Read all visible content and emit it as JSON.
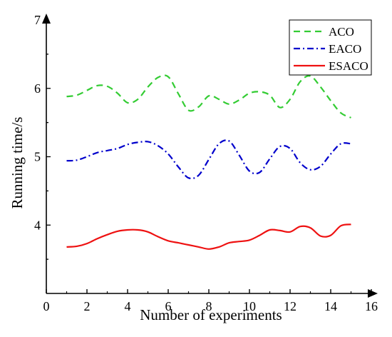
{
  "chart_data": {
    "type": "line",
    "title": "",
    "xlabel": "Number of experiments",
    "ylabel": "Running time/s",
    "xlim": [
      0,
      16
    ],
    "ylim": [
      3,
      7
    ],
    "xticks": [
      "0",
      "2",
      "4",
      "6",
      "8",
      "10",
      "12",
      "14",
      "16"
    ],
    "yticks": [
      "4",
      "5",
      "6",
      "7"
    ],
    "grid": false,
    "legend_position": "top-right",
    "x": [
      1,
      1.5,
      2,
      2.5,
      3,
      3.5,
      4,
      4.5,
      5,
      5.5,
      6,
      6.5,
      7,
      7.5,
      8,
      8.5,
      9,
      9.5,
      10,
      10.5,
      11,
      11.5,
      12,
      12.5,
      13,
      13.5,
      14,
      14.5,
      15
    ],
    "series": [
      {
        "name": "ACO",
        "color": "#33cc33",
        "dash": "dashed",
        "values": [
          5.88,
          5.9,
          5.97,
          6.04,
          6.03,
          5.93,
          5.79,
          5.84,
          6.02,
          6.16,
          6.17,
          5.92,
          5.68,
          5.73,
          5.89,
          5.84,
          5.77,
          5.83,
          5.93,
          5.95,
          5.9,
          5.72,
          5.84,
          6.1,
          6.18,
          6.02,
          5.82,
          5.64,
          5.57
        ]
      },
      {
        "name": "EACO",
        "color": "#0000cc",
        "dash": "dashdot",
        "values": [
          4.94,
          4.95,
          5.0,
          5.06,
          5.09,
          5.12,
          5.18,
          5.21,
          5.22,
          5.16,
          5.04,
          4.85,
          4.69,
          4.73,
          4.96,
          5.19,
          5.23,
          5.02,
          4.79,
          4.77,
          4.97,
          5.15,
          5.12,
          4.91,
          4.81,
          4.86,
          5.04,
          5.19,
          5.19
        ]
      },
      {
        "name": "ESACO",
        "color": "#ee1111",
        "dash": "solid",
        "values": [
          3.68,
          3.69,
          3.73,
          3.8,
          3.86,
          3.91,
          3.93,
          3.93,
          3.9,
          3.83,
          3.77,
          3.74,
          3.71,
          3.68,
          3.65,
          3.68,
          3.74,
          3.76,
          3.78,
          3.85,
          3.93,
          3.92,
          3.9,
          3.98,
          3.96,
          3.84,
          3.85,
          3.99,
          4.01
        ]
      }
    ]
  }
}
